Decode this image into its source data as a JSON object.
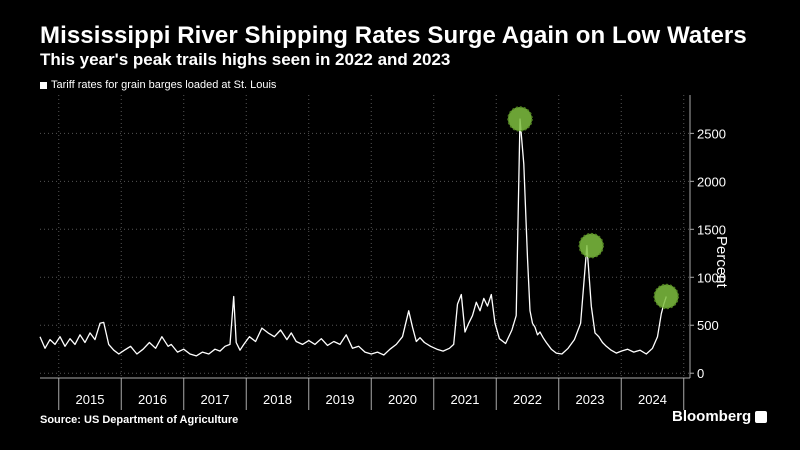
{
  "header": {
    "title": "Mississippi River Shipping Rates Surge Again on Low Waters",
    "subtitle": "This year's peak trails highs seen in 2022 and 2023"
  },
  "footer": {
    "source": "Source: US Department of Agriculture",
    "brand": "Bloomberg"
  },
  "colors": {
    "background": "#000000",
    "line": "#ffffff",
    "grid": "#555555",
    "highlight": "#7fbf3f"
  },
  "chart_data": {
    "type": "line",
    "title": "Mississippi River Shipping Rates Surge Again on Low Waters",
    "subtitle": "This year's peak trails highs seen in 2022 and 2023",
    "ylabel": "Percent",
    "xlabel": "",
    "ylim": [
      -50,
      2900
    ],
    "xlim": [
      2014.7,
      2025.1
    ],
    "yticks": [
      0,
      500,
      1000,
      1500,
      2000,
      2500
    ],
    "year_labels": [
      "2015",
      "2016",
      "2017",
      "2018",
      "2019",
      "2020",
      "2021",
      "2022",
      "2023",
      "2024"
    ],
    "grid": true,
    "legend_position": "top-left",
    "series": [
      {
        "name": "Tariff rates for grain barges loaded at St. Louis",
        "x": [
          2014.7,
          2014.78,
          2014.86,
          2014.94,
          2015.02,
          2015.1,
          2015.18,
          2015.26,
          2015.34,
          2015.42,
          2015.5,
          2015.58,
          2015.66,
          2015.72,
          2015.8,
          2015.88,
          2015.96,
          2016.05,
          2016.15,
          2016.25,
          2016.35,
          2016.45,
          2016.55,
          2016.65,
          2016.75,
          2016.8,
          2016.9,
          2017.0,
          2017.1,
          2017.2,
          2017.3,
          2017.4,
          2017.5,
          2017.58,
          2017.66,
          2017.74,
          2017.8,
          2017.84,
          2017.9,
          2017.96,
          2018.05,
          2018.15,
          2018.25,
          2018.35,
          2018.45,
          2018.55,
          2018.65,
          2018.72,
          2018.8,
          2018.9,
          2019.0,
          2019.1,
          2019.2,
          2019.3,
          2019.4,
          2019.5,
          2019.6,
          2019.7,
          2019.8,
          2019.9,
          2020.0,
          2020.1,
          2020.2,
          2020.3,
          2020.4,
          2020.5,
          2020.6,
          2020.66,
          2020.72,
          2020.78,
          2020.85,
          2020.95,
          2021.05,
          2021.15,
          2021.25,
          2021.32,
          2021.38,
          2021.44,
          2021.5,
          2021.56,
          2021.62,
          2021.68,
          2021.74,
          2021.8,
          2021.86,
          2021.92,
          2021.98,
          2022.05,
          2022.15,
          2022.25,
          2022.32,
          2022.38,
          2022.44,
          2022.5,
          2022.54,
          2022.58,
          2022.62,
          2022.66,
          2022.7,
          2022.75,
          2022.8,
          2022.88,
          2022.96,
          2023.05,
          2023.15,
          2023.25,
          2023.35,
          2023.45,
          2023.52,
          2023.58,
          2023.64,
          2023.7,
          2023.76,
          2023.84,
          2023.92,
          2024.0,
          2024.1,
          2024.2,
          2024.3,
          2024.4,
          2024.5,
          2024.58,
          2024.64,
          2024.68,
          2024.72
        ],
        "values": [
          380,
          260,
          350,
          300,
          380,
          280,
          360,
          300,
          400,
          320,
          420,
          350,
          520,
          530,
          300,
          240,
          200,
          240,
          280,
          200,
          250,
          320,
          260,
          380,
          280,
          300,
          220,
          250,
          200,
          180,
          220,
          200,
          250,
          230,
          280,
          300,
          800,
          320,
          240,
          300,
          380,
          330,
          470,
          420,
          380,
          450,
          350,
          420,
          330,
          300,
          340,
          300,
          360,
          290,
          330,
          300,
          400,
          260,
          280,
          220,
          200,
          220,
          190,
          250,
          300,
          380,
          650,
          480,
          330,
          370,
          320,
          280,
          250,
          230,
          260,
          300,
          720,
          820,
          430,
          520,
          600,
          740,
          650,
          780,
          700,
          820,
          520,
          360,
          310,
          450,
          600,
          2650,
          2180,
          1200,
          650,
          520,
          480,
          400,
          430,
          370,
          320,
          250,
          210,
          200,
          260,
          350,
          520,
          1330,
          700,
          420,
          380,
          320,
          280,
          240,
          210,
          230,
          250,
          220,
          240,
          200,
          260,
          380,
          620,
          720,
          800
        ]
      }
    ],
    "annotations": [
      {
        "label": "2022 peak",
        "x": 2022.38,
        "y": 2650
      },
      {
        "label": "2023 peak",
        "x": 2023.52,
        "y": 1330
      },
      {
        "label": "2024 peak",
        "x": 2024.72,
        "y": 800
      }
    ]
  }
}
